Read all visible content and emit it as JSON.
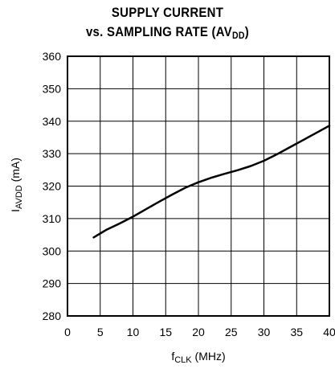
{
  "chart_data": {
    "type": "line",
    "title_line1": "SUPPLY CURRENT",
    "title_line2_main": "vs. SAMPLING RATE (AV",
    "title_line2_sub": "DD",
    "title_line2_end": ")",
    "xlabel_main": "f",
    "xlabel_sub": "CLK",
    "xlabel_end": " (MHz)",
    "ylabel_main": "I",
    "ylabel_sub": "AVDD",
    "ylabel_end": " (mA)",
    "xlim": [
      0,
      40
    ],
    "ylim": [
      280,
      360
    ],
    "xticks": [
      0,
      5,
      10,
      15,
      20,
      25,
      30,
      35,
      40
    ],
    "yticks": [
      280,
      290,
      300,
      310,
      320,
      330,
      340,
      350,
      360
    ],
    "grid": true,
    "series": [
      {
        "x": [
          4,
          6,
          8,
          10,
          12,
          14,
          16,
          18,
          20,
          22,
          24,
          26,
          28,
          30,
          32,
          34,
          36,
          38,
          40
        ],
        "values": [
          304.2,
          306.6,
          308.5,
          310.6,
          312.9,
          315.2,
          317.4,
          319.5,
          321.2,
          322.6,
          323.8,
          324.9,
          326.2,
          327.8,
          329.8,
          332.0,
          334.2,
          336.4,
          338.6
        ]
      }
    ]
  }
}
